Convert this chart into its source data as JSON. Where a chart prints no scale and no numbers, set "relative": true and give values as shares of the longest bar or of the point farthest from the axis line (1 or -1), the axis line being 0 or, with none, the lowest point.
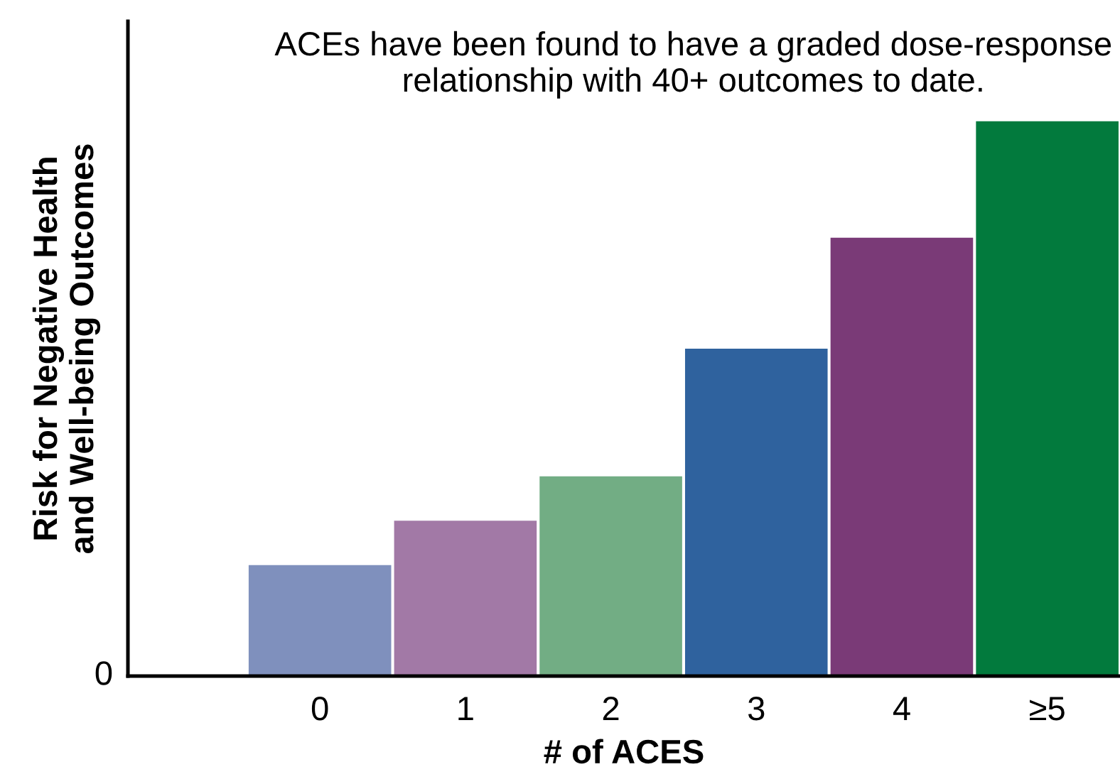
{
  "chart_data": {
    "type": "bar",
    "title": "ACEs have been found to have a graded dose-response relationship with 40+ outcomes to date.",
    "xlabel": "# of ACES",
    "ylabel": "Risk for Negative Health\nand Well-being Outcomes",
    "categories": [
      "0",
      "1",
      "2",
      "3",
      "4",
      "≥5"
    ],
    "values": [
      0.2,
      0.28,
      0.36,
      0.59,
      0.79,
      1
    ],
    "colors": [
      "#7f90bd",
      "#a279a6",
      "#72ad84",
      "#2f629e",
      "#7a3a77",
      "#027a3d"
    ],
    "relative": true,
    "annotations": [
      "0"
    ],
    "grid": false,
    "legend": false
  }
}
